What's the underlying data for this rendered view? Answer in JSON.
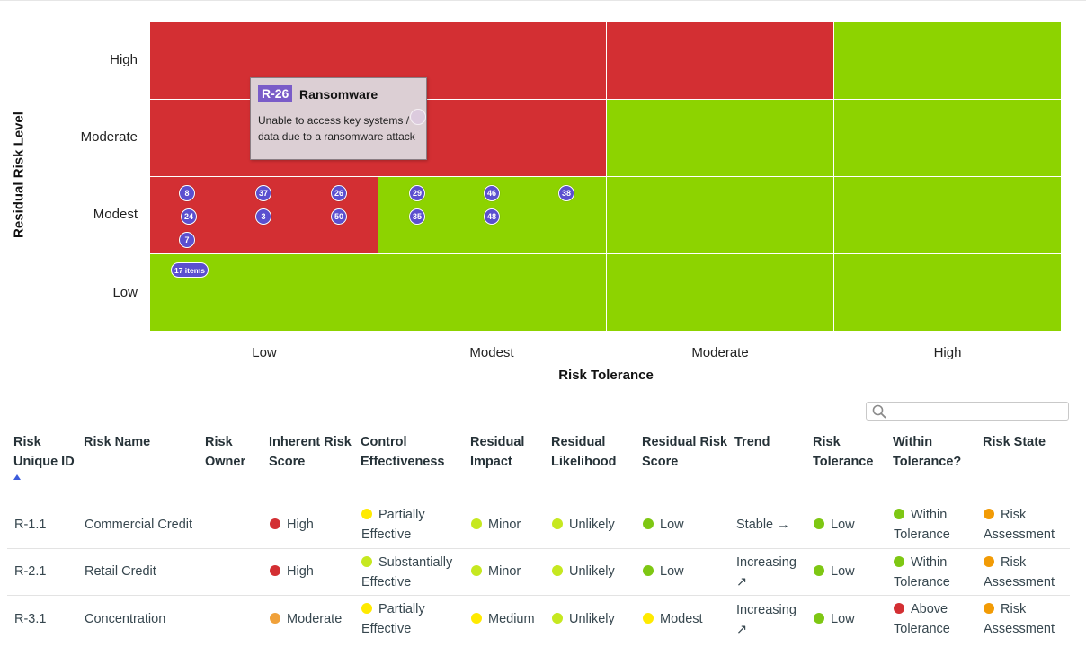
{
  "matrix": {
    "y_axis_title": "Residual Risk Level",
    "x_axis_title": "Risk Tolerance",
    "y_levels": [
      "High",
      "Moderate",
      "Modest",
      "Low"
    ],
    "x_levels": [
      "Low",
      "Modest",
      "Moderate",
      "High"
    ],
    "colors": {
      "red": "#d32f33",
      "green": "#8dd300",
      "bubble": "#5b4fcf"
    },
    "cells": [
      [
        "red",
        "red",
        "red",
        "green"
      ],
      [
        "red",
        "red",
        "green",
        "green"
      ],
      [
        "red",
        "green",
        "green",
        "green"
      ],
      [
        "green",
        "green",
        "green",
        "green"
      ]
    ],
    "bubbles": [
      "8",
      "37",
      "26",
      "29",
      "46",
      "38",
      "24",
      "3",
      "50",
      "35",
      "48",
      "7"
    ],
    "overflow_label": "17 items",
    "tooltip": {
      "id": "R-26",
      "name": "Ransomware",
      "description": "Unable to access key systems / data due to a ransomware attack"
    }
  },
  "search": {
    "placeholder": "",
    "value": ""
  },
  "table": {
    "headers": [
      {
        "l1": "Risk",
        "l2": "Unique ID"
      },
      {
        "l1": "Risk Name",
        "l2": ""
      },
      {
        "l1": "Risk",
        "l2": "Owner"
      },
      {
        "l1": "Inherent Risk",
        "l2": "Score"
      },
      {
        "l1": "Control",
        "l2": "Effectiveness"
      },
      {
        "l1": "Residual",
        "l2": "Impact"
      },
      {
        "l1": "Residual",
        "l2": "Likelihood"
      },
      {
        "l1": "Residual Risk",
        "l2": "Score"
      },
      {
        "l1": "Trend",
        "l2": ""
      },
      {
        "l1": "Risk",
        "l2": "Tolerance"
      },
      {
        "l1": "Within",
        "l2": "Tolerance?"
      },
      {
        "l1": "Risk State",
        "l2": ""
      }
    ],
    "status_colors": {
      "red": "#d32f33",
      "orange": "#f0a13a",
      "yellow": "#ffea00",
      "lime": "#c6e820",
      "green": "#7ec713",
      "state": "#f29b05"
    },
    "rows": [
      {
        "id": "R-1.1",
        "name": "Commercial Credit",
        "inherent": "High",
        "control1": "Partially",
        "control2": "Effective",
        "impact": "Minor",
        "likelihood": "Unlikely",
        "residual": "Low",
        "trend1": "Stable →",
        "trend2": "",
        "tolerance": "Low",
        "within1": "Within",
        "within2": "Tolerance",
        "state1": "Risk",
        "state2": "Assessment"
      },
      {
        "id": "R-2.1",
        "name": "Retail Credit",
        "inherent": "High",
        "control1": "Substantially",
        "control2": "Effective",
        "impact": "Minor",
        "likelihood": "Unlikely",
        "residual": "Low",
        "trend1": "Increasing",
        "trend2": "↗",
        "tolerance": "Low",
        "within1": "Within",
        "within2": "Tolerance",
        "state1": "Risk",
        "state2": "Assessment"
      },
      {
        "id": "R-3.1",
        "name": "Concentration",
        "inherent": "Moderate",
        "control1": "Partially",
        "control2": "Effective",
        "impact": "Medium",
        "likelihood": "Unlikely",
        "residual": "Modest",
        "trend1": "Increasing",
        "trend2": "↗",
        "tolerance": "Low",
        "within1": "Above",
        "within2": "Tolerance",
        "state1": "Risk",
        "state2": "Assessment"
      }
    ]
  }
}
